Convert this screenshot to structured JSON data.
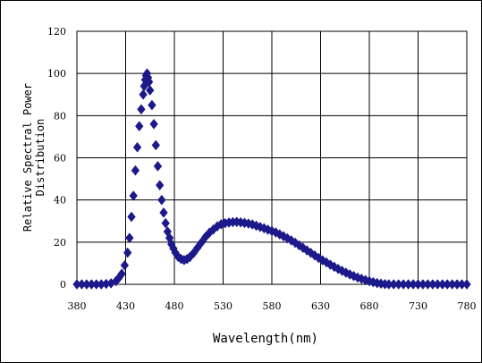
{
  "chart_data": {
    "type": "scatter",
    "title": "",
    "xlabel": "Wavelength(nm)",
    "ylabel_lines": [
      "Relative Spectral Power",
      "Distribution"
    ],
    "xlim": [
      380,
      780
    ],
    "ylim": [
      0,
      120
    ],
    "x_ticks": [
      380,
      430,
      480,
      530,
      580,
      630,
      680,
      730,
      780
    ],
    "y_ticks": [
      0,
      20,
      40,
      60,
      80,
      100,
      120
    ],
    "grid": true,
    "marker": "diamond",
    "marker_color": "#1c1a8a",
    "series": [
      {
        "x": [
          380,
          385,
          390,
          395,
          400,
          405,
          410,
          415,
          420,
          423,
          426,
          429,
          432,
          434,
          436,
          438,
          440,
          442,
          444,
          446,
          448,
          449,
          450,
          451,
          452,
          453,
          454,
          455,
          457,
          459,
          461,
          463,
          465,
          467,
          469,
          471,
          473,
          475,
          477,
          479,
          481,
          484,
          487,
          490,
          493,
          496,
          500,
          504,
          508,
          512,
          516,
          520,
          524,
          528,
          532,
          536,
          540,
          544,
          548,
          552,
          556,
          560,
          564,
          568,
          572,
          576,
          580,
          584,
          588,
          592,
          596,
          600,
          604,
          608,
          612,
          616,
          620,
          624,
          628,
          632,
          636,
          640,
          644,
          648,
          652,
          656,
          660,
          664,
          668,
          672,
          676,
          680,
          684,
          688,
          692,
          696,
          700,
          705,
          710,
          715,
          720,
          725,
          730,
          735,
          740,
          745,
          750,
          755,
          760,
          765,
          770,
          775,
          780
        ],
        "y": [
          0,
          0,
          0,
          0,
          0,
          0,
          0.2,
          0.5,
          1.5,
          3,
          5,
          9,
          15,
          22,
          32,
          42,
          54,
          65,
          75,
          83,
          90,
          94,
          97,
          99,
          100,
          98,
          96,
          92,
          85,
          76,
          66,
          56,
          47,
          40,
          34,
          29,
          25,
          22,
          19,
          17,
          15,
          13,
          12,
          11.5,
          12,
          13,
          15,
          17.5,
          20,
          22.5,
          24.5,
          26,
          27.5,
          28.5,
          29,
          29.3,
          29.5,
          29.6,
          29.4,
          29.1,
          28.8,
          28.4,
          27.8,
          27.2,
          26.6,
          25.9,
          25.3,
          24.6,
          23.7,
          22.8,
          21.8,
          20.8,
          19.7,
          18.5,
          17.3,
          16.1,
          14.9,
          13.7,
          12.5,
          11.4,
          10.4,
          9.3,
          8.3,
          7.3,
          6.4,
          5.5,
          4.7,
          3.9,
          3.2,
          2.6,
          2,
          1.5,
          1,
          0.6,
          0.3,
          0.1,
          0,
          0,
          0,
          0,
          0,
          0,
          0,
          0,
          0,
          0,
          0,
          0,
          0,
          0,
          0,
          0,
          0
        ]
      }
    ]
  }
}
